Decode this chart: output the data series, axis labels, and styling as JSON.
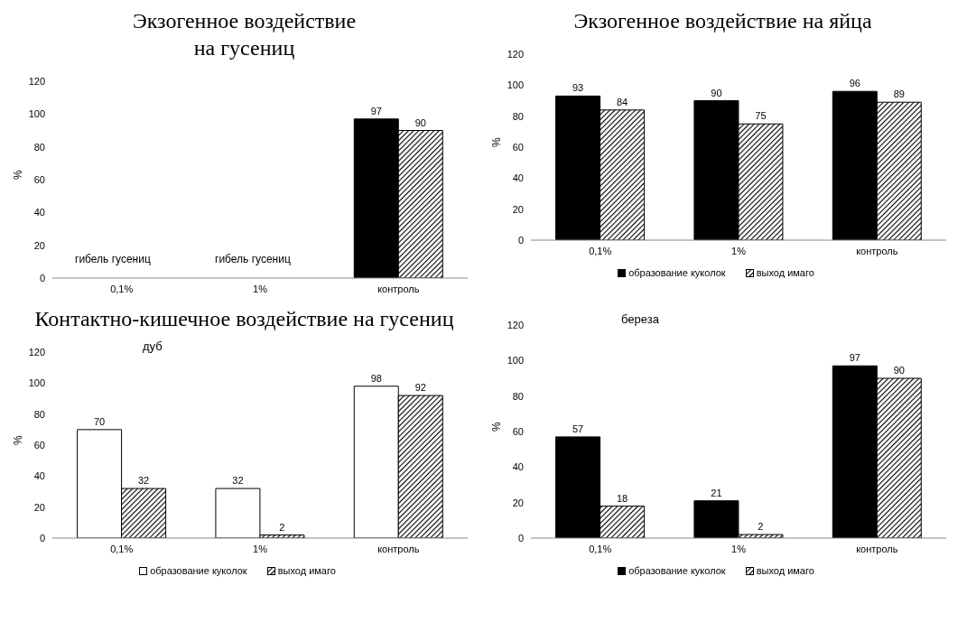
{
  "chart_data": [
    {
      "type": "bar",
      "title": "Экзогенное воздействие на гусениц",
      "ylabel": "%",
      "categories": [
        "0,1%",
        "1%",
        "контроль"
      ],
      "series": [
        {
          "color": "#000000",
          "values": [
            null,
            null,
            97
          ]
        },
        {
          "color": "#000000",
          "values": [
            null,
            null,
            90
          ]
        }
      ],
      "ylim": [
        0,
        120
      ],
      "yticks": [
        0,
        20,
        40,
        60,
        80,
        100,
        120
      ],
      "grid": false,
      "legend": false,
      "data_labels": true,
      "annotations": [
        "гибель гусениц",
        "гибель гусениц"
      ]
    },
    {
      "type": "bar",
      "title": "Экзогенное воздействие на яйца",
      "ylabel": "%",
      "categories": [
        "0,1%",
        "1%",
        "контроль"
      ],
      "series": [
        {
          "name": "образование куколок",
          "color": "#000000",
          "values": [
            93,
            90,
            96
          ]
        },
        {
          "name": "выход имаго",
          "color": "#000000",
          "values": [
            84,
            75,
            89
          ]
        }
      ],
      "ylim": [
        0,
        120
      ],
      "yticks": [
        0,
        20,
        40,
        60,
        80,
        100,
        120
      ],
      "grid": false,
      "legend": "bottom",
      "data_labels": true
    },
    {
      "type": "bar",
      "title": "Контактно-кишечное воздействие на гусениц",
      "ylabel": "%",
      "categories": [
        "0,1%",
        "1%",
        "контроль"
      ],
      "series": [
        {
          "name": "образование куколок",
          "color": "#ffffff",
          "values": [
            70,
            32,
            98
          ]
        },
        {
          "name": "выход имаго",
          "color": "#000000",
          "values": [
            32,
            2,
            92
          ]
        }
      ],
      "ylim": [
        0,
        120
      ],
      "yticks": [
        0,
        20,
        40,
        60,
        80,
        100,
        120
      ],
      "grid": false,
      "legend": "bottom",
      "data_labels": true,
      "annotations": [
        "дуб"
      ]
    },
    {
      "type": "bar",
      "ylabel": "%",
      "categories": [
        "0,1%",
        "1%",
        "контроль"
      ],
      "series": [
        {
          "name": "образование куколок",
          "color": "#000000",
          "values": [
            57,
            21,
            97
          ]
        },
        {
          "name": "выход имаго",
          "color": "#000000",
          "values": [
            18,
            2,
            90
          ]
        }
      ],
      "ylim": [
        0,
        120
      ],
      "yticks": [
        0,
        20,
        40,
        60,
        80,
        100,
        120
      ],
      "grid": false,
      "legend": "bottom",
      "data_labels": true,
      "annotations": [
        "береза"
      ]
    }
  ]
}
